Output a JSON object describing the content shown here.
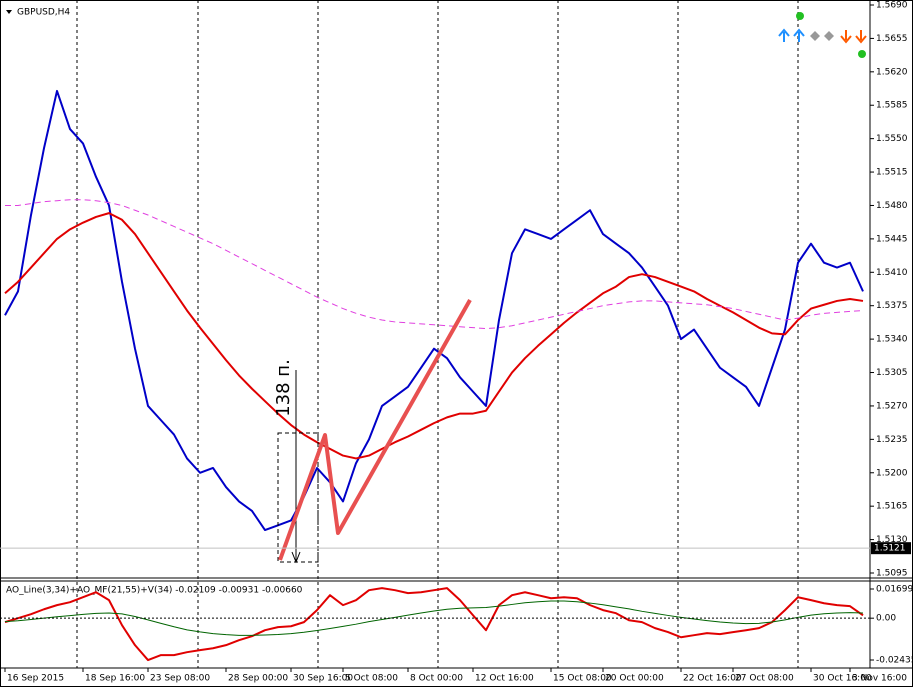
{
  "chart_data": [
    {
      "type": "line",
      "title": "GBPUSD,H4",
      "categories": [
        "16 Sep 2015",
        null,
        null,
        null,
        null,
        null,
        "18 Sep 16:00",
        null,
        null,
        null,
        null,
        "23 Sep 08:00",
        null,
        null,
        null,
        null,
        null,
        "28 Sep 00:00",
        null,
        null,
        null,
        null,
        "30 Sep 16:00",
        null,
        null,
        null,
        "5 Oct 08:00",
        null,
        null,
        null,
        null,
        "8 Oct 00:00",
        null,
        null,
        null,
        null,
        "12 Oct 16:00",
        null,
        null,
        null,
        null,
        null,
        "15 Oct 08:00",
        null,
        null,
        null,
        "20 Oct 00:00",
        null,
        null,
        null,
        null,
        null,
        "22 Oct 16:00",
        null,
        null,
        null,
        "27 Oct 08:00",
        null,
        null,
        null,
        null,
        null,
        "30 Oct 16:00",
        null,
        null,
        "3 Nov 16:00",
        null
      ],
      "series": [
        {
          "color": "#0000c8",
          "width": 2,
          "dashed": false,
          "values": [
            1.5365,
            1.539,
            1.547,
            1.554,
            1.56,
            1.556,
            1.5545,
            1.551,
            1.548,
            1.54,
            1.533,
            1.527,
            1.5255,
            1.524,
            1.5215,
            1.52,
            1.5205,
            1.5185,
            1.517,
            1.516,
            1.514,
            1.5145,
            1.515,
            1.5175,
            1.5205,
            1.519,
            1.517,
            1.521,
            1.5235,
            1.527,
            1.528,
            1.529,
            1.531,
            1.533,
            1.532,
            1.53,
            1.5285,
            1.527,
            1.536,
            1.543,
            1.5455,
            1.545,
            1.5445,
            1.5455,
            1.5465,
            1.5475,
            1.545,
            1.544,
            1.543,
            1.5415,
            1.5395,
            1.5375,
            1.534,
            1.535,
            1.533,
            1.531,
            1.53,
            1.529,
            1.527,
            1.531,
            1.535,
            1.542,
            1.544,
            1.542,
            1.5415,
            1.542,
            1.539
          ]
        },
        {
          "color": "#e00000",
          "width": 2,
          "dashed": false,
          "values": [
            1.5388,
            1.54,
            1.5415,
            1.543,
            1.5445,
            1.5455,
            1.5462,
            1.5468,
            1.5472,
            1.5465,
            1.545,
            1.543,
            1.541,
            1.539,
            1.537,
            1.5352,
            1.5335,
            1.5318,
            1.5302,
            1.5288,
            1.5275,
            1.5262,
            1.525,
            1.524,
            1.5232,
            1.5225,
            1.5218,
            1.5215,
            1.5218,
            1.5225,
            1.5232,
            1.5238,
            1.5245,
            1.5252,
            1.5258,
            1.5262,
            1.5262,
            1.5265,
            1.5285,
            1.5305,
            1.532,
            1.5333,
            1.5345,
            1.5357,
            1.5368,
            1.5378,
            1.5388,
            1.5395,
            1.5405,
            1.5408,
            1.5405,
            1.54,
            1.5395,
            1.539,
            1.5382,
            1.5375,
            1.5368,
            1.536,
            1.5352,
            1.5346,
            1.5345,
            1.536,
            1.5372,
            1.5376,
            1.538,
            1.5382,
            1.538
          ]
        },
        {
          "color": "#e040e0",
          "width": 1,
          "dashed": true,
          "values": [
            1.548,
            1.548,
            1.5482,
            1.5484,
            1.5485,
            1.5486,
            1.5486,
            1.5485,
            1.5483,
            1.548,
            1.5475,
            1.547,
            1.5464,
            1.5458,
            1.5452,
            1.5446,
            1.544,
            1.5433,
            1.5426,
            1.5419,
            1.5412,
            1.5405,
            1.5398,
            1.5391,
            1.5384,
            1.5378,
            1.5372,
            1.5367,
            1.5363,
            1.536,
            1.5358,
            1.5357,
            1.5356,
            1.5355,
            1.5354,
            1.5353,
            1.5352,
            1.5351,
            1.5352,
            1.5354,
            1.5357,
            1.536,
            1.5363,
            1.5366,
            1.5369,
            1.5372,
            1.5375,
            1.5377,
            1.5379,
            1.538,
            1.538,
            1.5379,
            1.5378,
            1.5377,
            1.5376,
            1.5374,
            1.5372,
            1.5369,
            1.5366,
            1.5363,
            1.536,
            1.5362,
            1.5365,
            1.5367,
            1.5368,
            1.5369,
            1.537
          ]
        }
      ],
      "ylim": [
        1.5095,
        1.569
      ],
      "yticks": [
        {
          "value": 1.569,
          "label": "1.5690"
        },
        1.5655,
        {
          "value": 1.562,
          "label": "1.5620"
        },
        1.5585,
        {
          "value": 1.555,
          "label": "1.5550"
        },
        1.5515,
        {
          "value": 1.548,
          "label": "1.5480"
        },
        1.5445,
        {
          "value": 1.541,
          "label": "1.5410"
        },
        1.5375,
        {
          "value": 1.534,
          "label": "1.5340"
        },
        1.5305,
        {
          "value": 1.527,
          "label": "1.5270"
        },
        1.5235,
        {
          "value": 1.52,
          "label": "1.5200"
        },
        1.5165,
        {
          "value": 1.513,
          "label": "1.5130"
        },
        1.5095
      ],
      "current_price": 1.5121,
      "annotation": "138 п."
    },
    {
      "type": "line",
      "title": "AO_Line(3,34)+AO_MF(21,55)+V(34) -0.02109 -0.00931 -0.00660",
      "series": [
        {
          "color": "#e00000",
          "width": 2,
          "dashed": false,
          "values": [
            -0.0023,
            0,
            0.0023,
            0.0052,
            0.0076,
            0.0093,
            0.0122,
            0.0151,
            0.0105,
            -0.0041,
            -0.0157,
            -0.0244,
            -0.0215,
            -0.0215,
            -0.0198,
            -0.0186,
            -0.0175,
            -0.0157,
            -0.0128,
            -0.0105,
            -0.007,
            -0.0052,
            -0.0047,
            -0.0023,
            0.0047,
            0.0134,
            0.0076,
            0.0105,
            0.0163,
            0.0175,
            0.0163,
            0.0146,
            0.0151,
            0.0163,
            0.0175,
            0.0105,
            0.0017,
            -0.007,
            0.0076,
            0.0134,
            0.0151,
            0.0134,
            0.0116,
            0.0122,
            0.0116,
            0.0076,
            0.0047,
            0.0029,
            -0.0012,
            -0.0023,
            -0.0058,
            -0.0081,
            -0.0111,
            -0.0099,
            -0.0087,
            -0.0093,
            -0.0081,
            -0.007,
            -0.0058,
            -0.0023,
            0.0047,
            0.0122,
            0.0105,
            0.0087,
            0.0076,
            0.007,
            0.0017
          ]
        },
        {
          "color": "#006400",
          "width": 1,
          "dashed": false,
          "values": [
            -0.002,
            -0.0015,
            -0.0008,
            0.0,
            0.0008,
            0.0015,
            0.0022,
            0.0028,
            0.003,
            0.0025,
            0.001,
            -0.001,
            -0.003,
            -0.005,
            -0.0068,
            -0.008,
            -0.009,
            -0.0096,
            -0.01,
            -0.01,
            -0.0098,
            -0.0095,
            -0.009,
            -0.0082,
            -0.0072,
            -0.006,
            -0.0048,
            -0.0035,
            -0.002,
            -0.0008,
            0.0005,
            0.0018,
            0.003,
            0.0042,
            0.0052,
            0.0058,
            0.006,
            0.0062,
            0.007,
            0.008,
            0.009,
            0.0096,
            0.01,
            0.01,
            0.0096,
            0.0088,
            0.0078,
            0.0066,
            0.0054,
            0.004,
            0.0028,
            0.0016,
            0.0005,
            -0.0005,
            -0.0014,
            -0.0022,
            -0.0028,
            -0.0032,
            -0.003,
            -0.0022,
            -0.001,
            0.0005,
            0.0018,
            0.0026,
            0.003,
            0.0032,
            0.003
          ]
        }
      ],
      "ylim": [
        -0.02435,
        0.01699
      ],
      "yticks": [
        0.01699,
        {
          "value": 0,
          "label": "0.00"
        },
        -0.02435
      ]
    }
  ]
}
